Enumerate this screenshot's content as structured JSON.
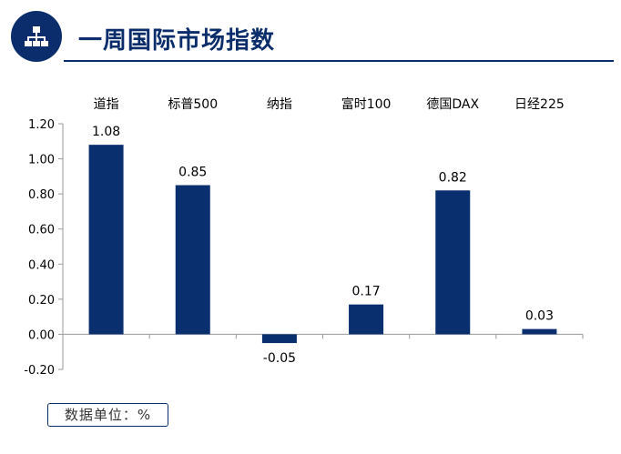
{
  "header": {
    "title": "一周国际市场指数",
    "logo_icon": "org-chart-icon"
  },
  "colors": {
    "brand": "#0b2d6b",
    "bar": "#0a2f6e",
    "axis": "#9a9a9a",
    "text": "#000000"
  },
  "chart_data": {
    "type": "bar",
    "categories": [
      "道指",
      "标普500",
      "纳指",
      "富时100",
      "德国DAX",
      "日经225"
    ],
    "values": [
      1.08,
      0.85,
      -0.05,
      0.17,
      0.82,
      0.03
    ],
    "data_labels": [
      "1.08",
      "0.85",
      "-0.05",
      "0.17",
      "0.82",
      "0.03"
    ],
    "ylim": [
      -0.2,
      1.2
    ],
    "yticks": [
      1.2,
      1.0,
      0.8,
      0.6,
      0.4,
      0.2,
      0.0,
      -0.2
    ],
    "ytick_labels": [
      "1.20",
      "1.00",
      "0.80",
      "0.60",
      "0.40",
      "0.20",
      "0.00",
      "-0.20"
    ],
    "category_label_position": "top",
    "grid": false,
    "title": "",
    "xlabel": "",
    "ylabel": ""
  },
  "footer": {
    "unit_label": "数据单位：%"
  }
}
